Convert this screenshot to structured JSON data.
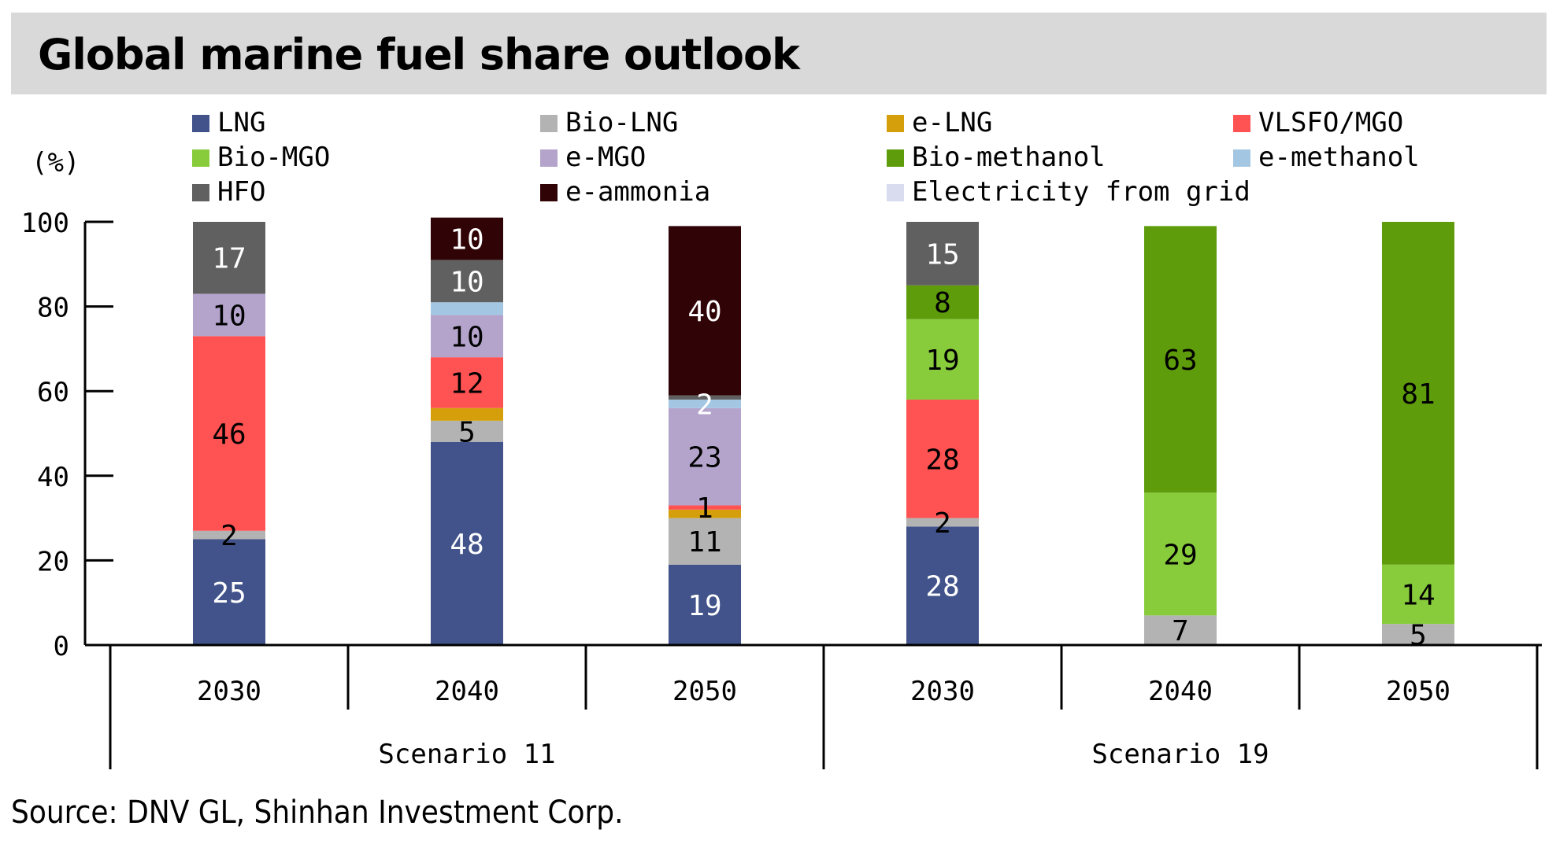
{
  "title": "Global marine fuel share outlook",
  "source": "Source:  DNV GL,  Shinhan  Investment  Corp.",
  "chart_data": {
    "type": "bar",
    "stacked": true,
    "title": "Global marine fuel share outlook",
    "ylabel": "(%)",
    "ylim": [
      0,
      100
    ],
    "yticks": [
      0,
      20,
      40,
      60,
      80,
      100
    ],
    "legend_position": "top",
    "categories": [
      "2030",
      "2040",
      "2050",
      "2030",
      "2040",
      "2050"
    ],
    "groups": [
      {
        "label": "Scenario 11",
        "categories": [
          "2030",
          "2040",
          "2050"
        ]
      },
      {
        "label": "Scenario 19",
        "categories": [
          "2030",
          "2040",
          "2050"
        ]
      }
    ],
    "series": [
      {
        "name": "LNG",
        "color": "#41538a",
        "label_color": "#ffffff",
        "values": [
          25,
          48,
          19,
          28,
          0,
          0
        ]
      },
      {
        "name": "Bio-LNG",
        "color": "#b3b3b3",
        "label_color": "#000000",
        "values": [
          2,
          5,
          11,
          2,
          7,
          5
        ]
      },
      {
        "name": "e-LNG",
        "color": "#d49f0a",
        "label_color": "#000000",
        "values": [
          0,
          3,
          2,
          0,
          0,
          0
        ]
      },
      {
        "name": "VLSFO/MGO",
        "color": "#ff5252",
        "label_color": "#000000",
        "values": [
          46,
          12,
          1,
          28,
          0,
          0
        ]
      },
      {
        "name": "Bio-MGO",
        "color": "#88cc3c",
        "label_color": "#000000",
        "values": [
          0,
          0,
          0,
          19,
          29,
          14
        ]
      },
      {
        "name": "e-MGO",
        "color": "#b4a4cc",
        "label_color": "#000000",
        "values": [
          10,
          10,
          23,
          0,
          0,
          0
        ]
      },
      {
        "name": "Bio-methanol",
        "color": "#5f9c0c",
        "label_color": "#000000",
        "values": [
          0,
          0,
          0,
          8,
          63,
          81
        ]
      },
      {
        "name": "e-methanol",
        "color": "#a3c7e3",
        "label_color": "#ffffff",
        "values": [
          0,
          3,
          2,
          0,
          0,
          0
        ]
      },
      {
        "name": "HFO",
        "color": "#606060",
        "label_color": "#ffffff",
        "values": [
          17,
          10,
          1,
          15,
          0,
          0
        ]
      },
      {
        "name": "e-ammonia",
        "color": "#300306",
        "label_color": "#ffffff",
        "values": [
          0,
          10,
          40,
          0,
          0,
          0
        ]
      },
      {
        "name": "Electricity from grid",
        "color": "#d8dcee",
        "label_color": "#000000",
        "values": [
          0,
          0,
          0,
          0,
          0,
          0
        ]
      }
    ],
    "data_labels": [
      {
        "bar": 0,
        "series": "LNG",
        "text": "25"
      },
      {
        "bar": 0,
        "series": "Bio-LNG",
        "text": "2"
      },
      {
        "bar": 0,
        "series": "VLSFO/MGO",
        "text": "46"
      },
      {
        "bar": 0,
        "series": "e-MGO",
        "text": "10"
      },
      {
        "bar": 0,
        "series": "HFO",
        "text": "17"
      },
      {
        "bar": 1,
        "series": "LNG",
        "text": "48"
      },
      {
        "bar": 1,
        "series": "Bio-LNG",
        "text": "5"
      },
      {
        "bar": 1,
        "series": "VLSFO/MGO",
        "text": "12"
      },
      {
        "bar": 1,
        "series": "e-MGO",
        "text": "10"
      },
      {
        "bar": 1,
        "series": "HFO",
        "text": "10"
      },
      {
        "bar": 1,
        "series": "e-ammonia",
        "text": "10"
      },
      {
        "bar": 2,
        "series": "LNG",
        "text": "19"
      },
      {
        "bar": 2,
        "series": "Bio-LNG",
        "text": "11"
      },
      {
        "bar": 2,
        "series": "VLSFO/MGO",
        "text": "1"
      },
      {
        "bar": 2,
        "series": "e-MGO",
        "text": "23"
      },
      {
        "bar": 2,
        "series": "e-methanol",
        "text": "2"
      },
      {
        "bar": 2,
        "series": "e-ammonia",
        "text": "40"
      },
      {
        "bar": 3,
        "series": "LNG",
        "text": "28"
      },
      {
        "bar": 3,
        "series": "Bio-LNG",
        "text": "2"
      },
      {
        "bar": 3,
        "series": "VLSFO/MGO",
        "text": "28"
      },
      {
        "bar": 3,
        "series": "Bio-MGO",
        "text": "19"
      },
      {
        "bar": 3,
        "series": "Bio-methanol",
        "text": "8"
      },
      {
        "bar": 3,
        "series": "HFO",
        "text": "15"
      },
      {
        "bar": 4,
        "series": "Bio-LNG",
        "text": "7"
      },
      {
        "bar": 4,
        "series": "Bio-MGO",
        "text": "29"
      },
      {
        "bar": 4,
        "series": "Bio-methanol",
        "text": "63"
      },
      {
        "bar": 5,
        "series": "Bio-LNG",
        "text": "5"
      },
      {
        "bar": 5,
        "series": "Bio-MGO",
        "text": "14"
      },
      {
        "bar": 5,
        "series": "Bio-methanol",
        "text": "81"
      }
    ]
  }
}
